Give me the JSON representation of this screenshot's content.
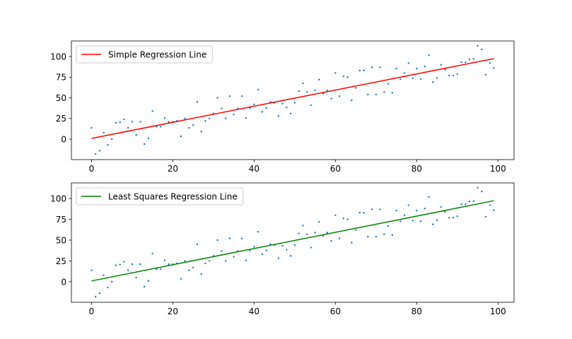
{
  "chart_data": [
    {
      "type": "scatter",
      "x": [
        0,
        1,
        2,
        3,
        4,
        5,
        6,
        7,
        8,
        9,
        10,
        11,
        12,
        13,
        14,
        15,
        16,
        17,
        18,
        19,
        20,
        21,
        22,
        23,
        24,
        25,
        26,
        27,
        28,
        29,
        30,
        31,
        32,
        33,
        34,
        35,
        36,
        37,
        38,
        39,
        40,
        41,
        42,
        43,
        44,
        45,
        46,
        47,
        48,
        49,
        50,
        51,
        52,
        53,
        54,
        55,
        56,
        57,
        58,
        59,
        60,
        61,
        62,
        63,
        64,
        65,
        66,
        67,
        68,
        69,
        70,
        71,
        72,
        73,
        74,
        75,
        76,
        77,
        78,
        79,
        80,
        81,
        82,
        83,
        84,
        85,
        86,
        87,
        88,
        89,
        90,
        91,
        92,
        93,
        94,
        95,
        96,
        97,
        98,
        99
      ],
      "values": [
        13.7,
        -18,
        -14,
        7.7,
        -7,
        0,
        19.7,
        20.5,
        24,
        13.7,
        21,
        5,
        21,
        -6,
        1,
        34,
        15,
        15,
        25.6,
        21,
        21,
        22,
        3.4,
        25,
        13.7,
        17,
        45,
        9,
        22,
        25,
        31,
        50,
        37,
        25,
        52,
        30,
        37,
        52,
        25.6,
        37.6,
        42,
        60,
        33,
        37.6,
        45,
        44,
        28,
        43,
        38.5,
        31,
        44,
        58,
        67.5,
        57,
        41,
        59,
        72,
        55,
        59,
        49,
        80,
        52,
        76,
        75,
        47,
        62,
        83,
        83,
        54,
        87,
        54,
        87,
        57,
        67,
        56,
        85.5,
        72.6,
        80,
        92,
        73.5,
        85.5,
        72.6,
        88,
        101.7,
        69,
        74,
        90,
        84,
        77,
        77,
        78.6,
        93,
        93,
        96.6,
        97,
        113,
        108.5,
        78,
        92,
        86
      ],
      "color": "#1f77b4",
      "line": {
        "name": "Simple Regression Line",
        "color": "#ff0000",
        "x": [
          0,
          99
        ],
        "values": [
          0.85,
          97.4
        ]
      },
      "xlim": [
        -4.95,
        103.95
      ],
      "ylim": [
        -24.8,
        118.8
      ],
      "xticks": [
        0,
        20,
        40,
        60,
        80,
        100
      ],
      "yticks": [
        0,
        25,
        50,
        75,
        100
      ],
      "legend": "upper left"
    },
    {
      "type": "scatter",
      "x": [
        0,
        1,
        2,
        3,
        4,
        5,
        6,
        7,
        8,
        9,
        10,
        11,
        12,
        13,
        14,
        15,
        16,
        17,
        18,
        19,
        20,
        21,
        22,
        23,
        24,
        25,
        26,
        27,
        28,
        29,
        30,
        31,
        32,
        33,
        34,
        35,
        36,
        37,
        38,
        39,
        40,
        41,
        42,
        43,
        44,
        45,
        46,
        47,
        48,
        49,
        50,
        51,
        52,
        53,
        54,
        55,
        56,
        57,
        58,
        59,
        60,
        61,
        62,
        63,
        64,
        65,
        66,
        67,
        68,
        69,
        70,
        71,
        72,
        73,
        74,
        75,
        76,
        77,
        78,
        79,
        80,
        81,
        82,
        83,
        84,
        85,
        86,
        87,
        88,
        89,
        90,
        91,
        92,
        93,
        94,
        95,
        96,
        97,
        98,
        99
      ],
      "values": [
        13.7,
        -18,
        -14,
        7.7,
        -7,
        0,
        19.7,
        20.5,
        24,
        13.7,
        21,
        5,
        21,
        -6,
        1,
        34,
        15,
        15,
        25.6,
        21,
        21,
        22,
        3.4,
        25,
        13.7,
        17,
        45,
        9,
        22,
        25,
        31,
        50,
        37,
        25,
        52,
        30,
        37,
        52,
        25.6,
        37.6,
        42,
        60,
        33,
        37.6,
        45,
        44,
        28,
        43,
        38.5,
        31,
        44,
        58,
        67.5,
        57,
        41,
        59,
        72,
        55,
        59,
        49,
        80,
        52,
        76,
        75,
        47,
        62,
        83,
        83,
        54,
        87,
        54,
        87,
        57,
        67,
        56,
        85.5,
        72.6,
        80,
        92,
        73.5,
        85.5,
        72.6,
        88,
        101.7,
        69,
        74,
        90,
        84,
        77,
        77,
        78.6,
        93,
        93,
        96.6,
        97,
        113,
        108.5,
        78,
        92,
        86
      ],
      "color": "#1f77b4",
      "line": {
        "name": "Least Squares Regression Line",
        "color": "#008000",
        "x": [
          0,
          99
        ],
        "values": [
          0.85,
          97.4
        ]
      },
      "xlim": [
        -4.95,
        103.95
      ],
      "ylim": [
        -24.8,
        118.8
      ],
      "xticks": [
        0,
        20,
        40,
        60,
        80,
        100
      ],
      "yticks": [
        0,
        25,
        50,
        75,
        100
      ],
      "legend": "upper left"
    }
  ]
}
